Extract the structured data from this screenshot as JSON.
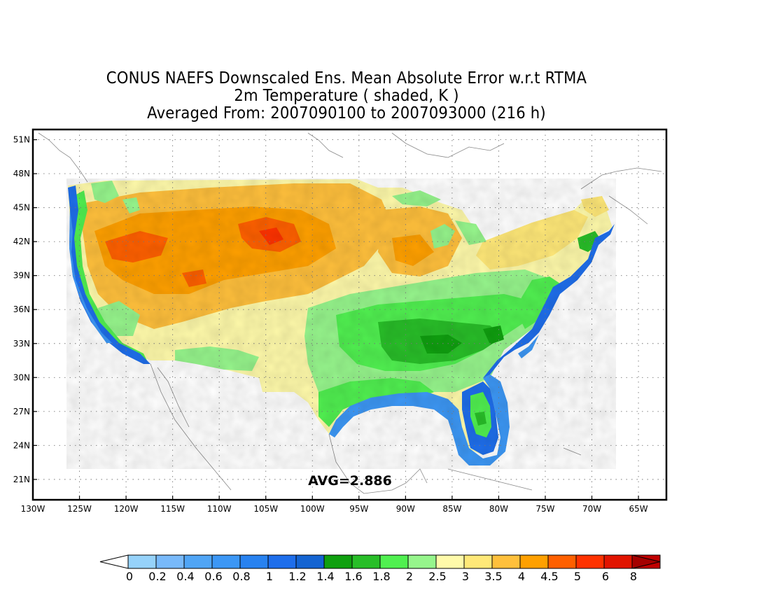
{
  "title": {
    "line1": "CONUS NAEFS Downscaled Ens. Mean Absolute Error w.r.t RTMA",
    "line2": "2m Temperature ( shaded, K )",
    "line3": "Averaged From: 2007090100 to 2007093000 (216 h)"
  },
  "annotation": {
    "avg": "AVG=2.886"
  },
  "map": {
    "lon_range": [
      -130,
      -62
    ],
    "lat_range": [
      19.2,
      51.9
    ],
    "lon_ticks": [
      {
        "v": -130,
        "label": "130W"
      },
      {
        "v": -125,
        "label": "125W"
      },
      {
        "v": -120,
        "label": "120W"
      },
      {
        "v": -115,
        "label": "115W"
      },
      {
        "v": -110,
        "label": "110W"
      },
      {
        "v": -105,
        "label": "105W"
      },
      {
        "v": -100,
        "label": "100W"
      },
      {
        "v": -95,
        "label": "95W"
      },
      {
        "v": -90,
        "label": "90W"
      },
      {
        "v": -85,
        "label": "85W"
      },
      {
        "v": -80,
        "label": "80W"
      },
      {
        "v": -75,
        "label": "75W"
      },
      {
        "v": -70,
        "label": "70W"
      },
      {
        "v": -65,
        "label": "65W"
      }
    ],
    "lat_ticks": [
      {
        "v": 21,
        "label": "21N"
      },
      {
        "v": 24,
        "label": "24N"
      },
      {
        "v": 27,
        "label": "27N"
      },
      {
        "v": 30,
        "label": "30N"
      },
      {
        "v": 33,
        "label": "33N"
      },
      {
        "v": 36,
        "label": "36N"
      },
      {
        "v": 39,
        "label": "39N"
      },
      {
        "v": 42,
        "label": "42N"
      },
      {
        "v": 45,
        "label": "45N"
      },
      {
        "v": 48,
        "label": "48N"
      },
      {
        "v": 51,
        "label": "51N"
      }
    ],
    "grid": true
  },
  "colorbar": {
    "colors": [
      "#96d2fa",
      "#78b9fa",
      "#50a5f5",
      "#3c97f5",
      "#2882f0",
      "#1e6eeb",
      "#1464d2",
      "#0fa00f",
      "#28be28",
      "#50f050",
      "#96f58c",
      "#fffaaa",
      "#ffe878",
      "#ffc03c",
      "#ffa000",
      "#ff6000",
      "#ff3200",
      "#e11400",
      "#c00000"
    ],
    "labels": [
      "0",
      "0.2",
      "0.4",
      "0.6",
      "0.8",
      "1",
      "1.2",
      "1.4",
      "1.6",
      "1.8",
      "2",
      "2.5",
      "3",
      "3.5",
      "4",
      "4.5",
      "5",
      "6",
      "8"
    ],
    "under_color": "#ffffff",
    "over_color": "#a50000"
  }
}
